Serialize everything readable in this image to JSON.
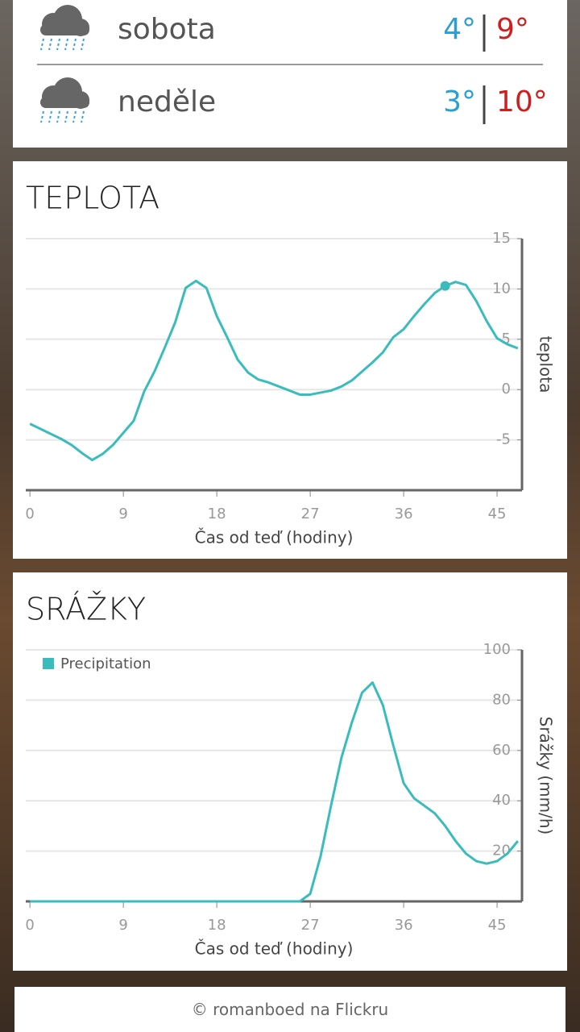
{
  "forecast": [
    {
      "day": "sobota",
      "low": "4°",
      "high": "9°"
    },
    {
      "day": "neděle",
      "low": "3°",
      "high": "10°"
    }
  ],
  "chart_data": [
    {
      "type": "line",
      "title": "TEPLOTA",
      "x_label": "Čas od teď (hodiny)",
      "y_label": "teplota",
      "x": [
        0,
        1,
        2,
        3,
        4,
        5,
        6,
        7,
        8,
        9,
        10,
        11,
        12,
        13,
        14,
        15,
        16,
        17,
        18,
        19,
        20,
        21,
        22,
        23,
        24,
        25,
        26,
        27,
        28,
        29,
        30,
        31,
        32,
        33,
        34,
        35,
        36,
        37,
        38,
        39,
        40,
        41,
        42,
        43,
        44,
        45,
        46,
        47
      ],
      "series": [
        {
          "name": "teplota",
          "color": "#3bbcbc",
          "values": [
            -3.4,
            -3.9,
            -4.4,
            -4.9,
            -5.5,
            -6.3,
            -7.0,
            -6.4,
            -5.5,
            -4.3,
            -3.1,
            -0.2,
            1.8,
            4.2,
            6.7,
            10.1,
            10.8,
            10.1,
            7.3,
            5.2,
            3.0,
            1.7,
            1.0,
            0.7,
            0.3,
            -0.1,
            -0.5,
            -0.5,
            -0.3,
            -0.1,
            0.3,
            0.9,
            1.8,
            2.7,
            3.7,
            5.2,
            6.0,
            7.3,
            8.5,
            9.6,
            10.3,
            10.7,
            10.4,
            8.8,
            6.8,
            5.1,
            4.5,
            4.1
          ]
        }
      ],
      "marker_index": 40,
      "xlim": [
        -0.4,
        47.4
      ],
      "ylim": [
        -10,
        15
      ],
      "xticks": [
        0,
        9,
        18,
        27,
        36,
        45
      ],
      "yticks": [
        -5,
        0,
        5,
        10,
        15
      ],
      "grid": true,
      "legend": false
    },
    {
      "type": "line",
      "title": "SRÁŽKY",
      "x_label": "Čas od teď (hodiny)",
      "y_label": "Srážky (mm/h)",
      "x": [
        0,
        1,
        2,
        3,
        4,
        5,
        6,
        7,
        8,
        9,
        10,
        11,
        12,
        13,
        14,
        15,
        16,
        17,
        18,
        19,
        20,
        21,
        22,
        23,
        24,
        25,
        26,
        27,
        28,
        29,
        30,
        31,
        32,
        33,
        34,
        35,
        36,
        37,
        38,
        39,
        40,
        41,
        42,
        43,
        44,
        45,
        46,
        47
      ],
      "series": [
        {
          "name": "Precipitation",
          "color": "#3bbcbc",
          "values": [
            0,
            0,
            0,
            0,
            0,
            0,
            0,
            0,
            0,
            0,
            0,
            0,
            0,
            0,
            0,
            0,
            0,
            0,
            0,
            0,
            0,
            0,
            0,
            0,
            0,
            0,
            0,
            3,
            18,
            38,
            57,
            71,
            83,
            87,
            78,
            62,
            47,
            41,
            38,
            35,
            30,
            24,
            19,
            16,
            15,
            16,
            19,
            24
          ]
        }
      ],
      "xlim": [
        -0.4,
        47.4
      ],
      "ylim": [
        0,
        100
      ],
      "xticks": [
        0,
        9,
        18,
        27,
        36,
        45
      ],
      "yticks": [
        20,
        40,
        60,
        80,
        100
      ],
      "grid": true,
      "legend": "top-left"
    }
  ],
  "footer": "© romanboed na Flickru"
}
